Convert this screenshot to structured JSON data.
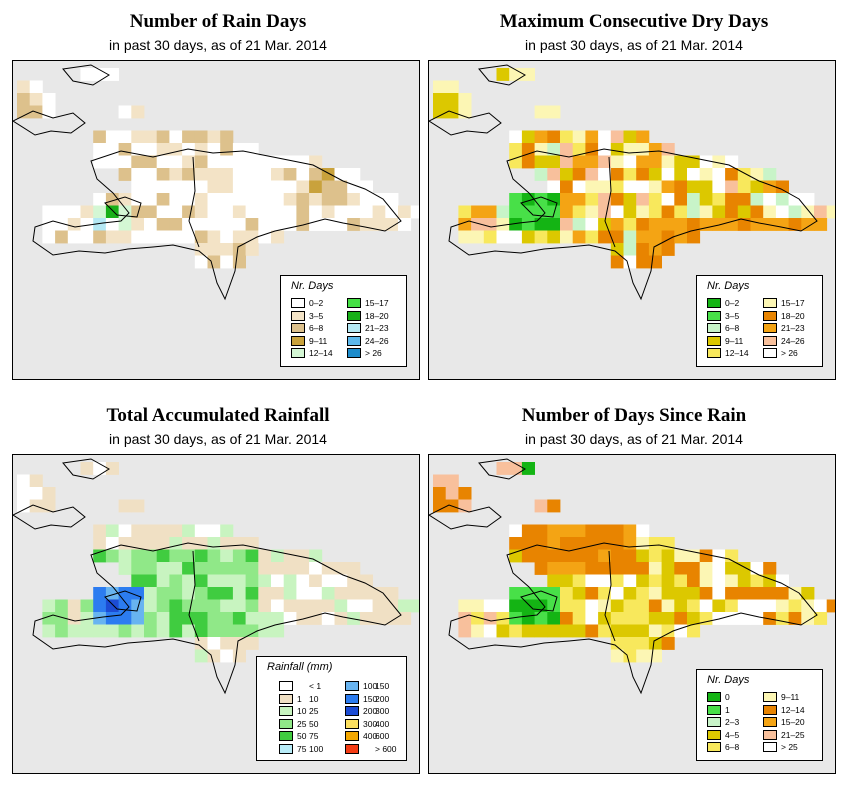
{
  "colors": {
    "background": "#e8e8e8",
    "land": "#ffffff",
    "outline": "#000000"
  },
  "panels": [
    {
      "id": "rain-days",
      "title": "Number of Rain Days",
      "subtitle": "in past 30 days, as of  21 Mar. 2014",
      "legend_title": "Nr. Days",
      "legend_items": [
        {
          "label": "0–2",
          "color": "#ffffff"
        },
        {
          "label": "3–5",
          "color": "#f3e3c6"
        },
        {
          "label": "6–8",
          "color": "#ddc18c"
        },
        {
          "label": "9–11",
          "color": "#c9a23c"
        },
        {
          "label": "12–14",
          "color": "#d4f7d4"
        },
        {
          "label": "15–17",
          "color": "#44e044"
        },
        {
          "label": "18–20",
          "color": "#18b018"
        },
        {
          "label": "21–23",
          "color": "#b4e8f4"
        },
        {
          "label": "24–26",
          "color": "#5cb8ec"
        },
        {
          "label": "> 26",
          "color": "#1c8ccc"
        }
      ]
    },
    {
      "id": "max-dry-days",
      "title": "Maximum Consecutive Dry Days",
      "subtitle": "in past 30 days, as of  21 Mar. 2014",
      "legend_title": "Nr. Days",
      "legend_items": [
        {
          "label": "0–2",
          "color": "#14b414"
        },
        {
          "label": "3–5",
          "color": "#48e048"
        },
        {
          "label": "6–8",
          "color": "#c8f4c8"
        },
        {
          "label": "9–11",
          "color": "#dcc800"
        },
        {
          "label": "12–14",
          "color": "#f8e85c"
        },
        {
          "label": "15–17",
          "color": "#fcf6b4"
        },
        {
          "label": "18–20",
          "color": "#e88400"
        },
        {
          "label": "21–23",
          "color": "#f4a414"
        },
        {
          "label": "24–26",
          "color": "#f8c09c"
        },
        {
          "label": "> 26",
          "color": "#ffffff"
        }
      ]
    },
    {
      "id": "total-rainfall",
      "title": "Total Accumulated Rainfall",
      "subtitle": "in past 30 days, as of  21 Mar. 2014",
      "legend_title": "Rainfall (mm)",
      "legend_items": [
        {
          "lo": "",
          "hi": "< 1",
          "color": "#ffffff"
        },
        {
          "lo": "1",
          "hi": "10",
          "color": "#f0e0c4"
        },
        {
          "lo": "10",
          "hi": "25",
          "color": "#c8f4c0"
        },
        {
          "lo": "25",
          "hi": "50",
          "color": "#90e888"
        },
        {
          "lo": "50",
          "hi": "75",
          "color": "#40cc40"
        },
        {
          "lo": "75",
          "hi": "100",
          "color": "#b8ecf8"
        },
        {
          "lo": "100",
          "hi": "150",
          "color": "#68b4f0"
        },
        {
          "lo": "150",
          "hi": "200",
          "color": "#2c7cf0"
        },
        {
          "lo": "200",
          "hi": "300",
          "color": "#1c4cd4"
        },
        {
          "lo": "300",
          "hi": "400",
          "color": "#fce060"
        },
        {
          "lo": "400",
          "hi": "600",
          "color": "#f4a800"
        },
        {
          "lo": "",
          "hi": "> 600",
          "color": "#f43c14"
        }
      ]
    },
    {
      "id": "days-since-rain",
      "title": "Number of Days Since Rain",
      "subtitle": "in past 30 days, as of  21 Mar. 2014",
      "legend_title": "Nr. Days",
      "legend_items": [
        {
          "label": "0",
          "color": "#14b414"
        },
        {
          "label": "1",
          "color": "#48e048"
        },
        {
          "label": "2–3",
          "color": "#c8f4c8"
        },
        {
          "label": "4–5",
          "color": "#dcc800"
        },
        {
          "label": "6–8",
          "color": "#f8e85c"
        },
        {
          "label": "9–11",
          "color": "#fcf6b4"
        },
        {
          "label": "12–14",
          "color": "#e88400"
        },
        {
          "label": "15–20",
          "color": "#f4a414"
        },
        {
          "label": "21–25",
          "color": "#f8c09c"
        },
        {
          "label": "> 25",
          "color": "#ffffff"
        }
      ]
    }
  ]
}
